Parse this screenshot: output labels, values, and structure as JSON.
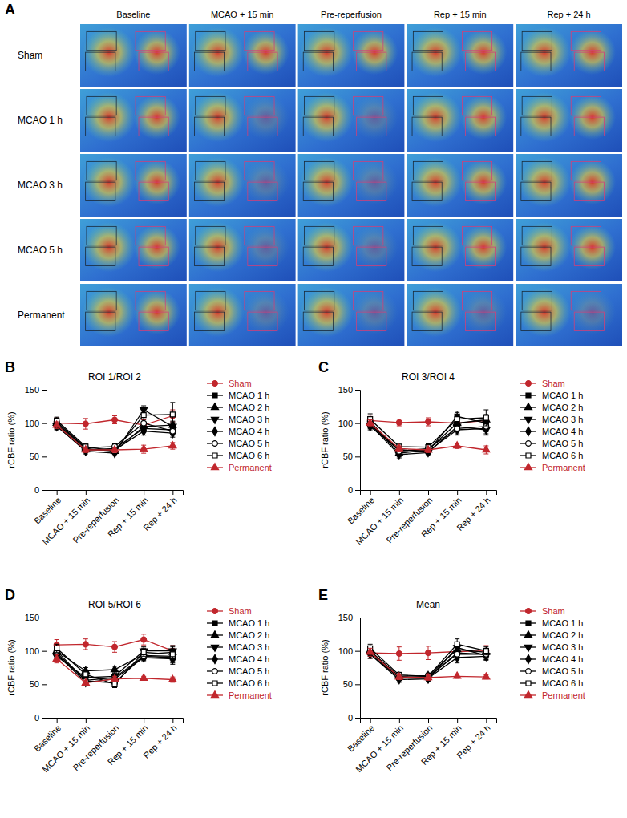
{
  "image_grid": {
    "panel": "A",
    "columns": [
      "Baseline",
      "MCAO + 15 min",
      "Pre-reperfusion",
      "Rep + 15 min",
      "Rep + 24 h"
    ],
    "rows": [
      "Sham",
      "MCAO 1 h",
      "MCAO 3 h",
      "MCAO 5 h",
      "Permanent"
    ]
  },
  "chart_data": [
    {
      "panel": "B",
      "type": "line",
      "title": "ROI 1/ROI 2",
      "y_label": "rCBF ratio (%)",
      "categories": [
        "Baseline",
        "MCAO + 15 min",
        "Pre-reperfusion",
        "Rep + 15 min",
        "Rep + 24 h"
      ],
      "ylim": [
        0,
        150
      ],
      "yticks": [
        0,
        50,
        100,
        150
      ],
      "legend": "right",
      "series": [
        {
          "name": "Sham",
          "color": "#c1272d",
          "marker": "circle",
          "values": [
            100,
            99,
            105,
            97,
            111
          ],
          "errors": [
            8,
            8,
            6,
            8,
            9
          ]
        },
        {
          "name": "MCAO 1 h",
          "color": "#000000",
          "marker": "square",
          "values": [
            98,
            60,
            62,
            92,
            90
          ],
          "errors": [
            5,
            4,
            4,
            6,
            6
          ]
        },
        {
          "name": "MCAO 2 h",
          "color": "#000000",
          "marker": "triangle-up",
          "values": [
            100,
            62,
            58,
            95,
            97
          ],
          "errors": [
            5,
            4,
            4,
            6,
            6
          ]
        },
        {
          "name": "MCAO 3 h",
          "color": "#000000",
          "marker": "triangle-down",
          "values": [
            96,
            58,
            55,
            120,
            95
          ],
          "errors": [
            5,
            4,
            4,
            6,
            6
          ]
        },
        {
          "name": "MCAO 4 h",
          "color": "#000000",
          "marker": "diamond",
          "values": [
            95,
            60,
            60,
            88,
            85
          ],
          "errors": [
            5,
            4,
            4,
            6,
            6
          ]
        },
        {
          "name": "MCAO 5 h",
          "color": "#000000",
          "marker": "circle-open",
          "values": [
            102,
            63,
            65,
            100,
            88
          ],
          "errors": [
            5,
            4,
            4,
            6,
            6
          ]
        },
        {
          "name": "MCAO 6 h",
          "color": "#000000",
          "marker": "square-open",
          "values": [
            104,
            65,
            58,
            112,
            113
          ],
          "errors": [
            5,
            4,
            4,
            6,
            18
          ]
        },
        {
          "name": "Permanent",
          "color": "#c1272d",
          "marker": "triangle-up",
          "values": [
            97,
            60,
            60,
            61,
            66
          ],
          "errors": [
            5,
            4,
            4,
            6,
            5
          ]
        }
      ]
    },
    {
      "panel": "C",
      "type": "line",
      "title": "ROI 3/ROI 4",
      "y_label": "rCBF ratio (%)",
      "categories": [
        "Baseline",
        "MCAO + 15 min",
        "Pre-reperfusion",
        "Rep + 15 min",
        "Rep + 24 h"
      ],
      "ylim": [
        0,
        150
      ],
      "yticks": [
        0,
        50,
        100,
        150
      ],
      "legend": "right",
      "series": [
        {
          "name": "Sham",
          "color": "#c1272d",
          "marker": "circle",
          "values": [
            104,
            101,
            102,
            100,
            104
          ],
          "errors": [
            6,
            5,
            6,
            5,
            6
          ]
        },
        {
          "name": "MCAO 1 h",
          "color": "#000000",
          "marker": "square",
          "values": [
            98,
            60,
            58,
            110,
            100
          ],
          "errors": [
            5,
            5,
            5,
            8,
            8
          ]
        },
        {
          "name": "MCAO 2 h",
          "color": "#000000",
          "marker": "triangle-up",
          "values": [
            100,
            55,
            60,
            100,
            105
          ],
          "errors": [
            5,
            5,
            5,
            8,
            8
          ]
        },
        {
          "name": "MCAO 3 h",
          "color": "#000000",
          "marker": "triangle-down",
          "values": [
            97,
            53,
            56,
            95,
            90
          ],
          "errors": [
            5,
            5,
            5,
            8,
            8
          ]
        },
        {
          "name": "MCAO 4 h",
          "color": "#000000",
          "marker": "diamond",
          "values": [
            95,
            60,
            58,
            90,
            92
          ],
          "errors": [
            5,
            5,
            5,
            8,
            8
          ]
        },
        {
          "name": "MCAO 5 h",
          "color": "#000000",
          "marker": "circle-open",
          "values": [
            102,
            58,
            62,
            92,
            95
          ],
          "errors": [
            5,
            5,
            5,
            8,
            8
          ]
        },
        {
          "name": "MCAO 6 h",
          "color": "#000000",
          "marker": "square-open",
          "values": [
            106,
            65,
            64,
            106,
            108
          ],
          "errors": [
            8,
            5,
            5,
            10,
            12
          ]
        },
        {
          "name": "Permanent",
          "color": "#c1272d",
          "marker": "triangle-up",
          "values": [
            100,
            62,
            60,
            66,
            60
          ],
          "errors": [
            5,
            4,
            4,
            4,
            6
          ]
        }
      ]
    },
    {
      "panel": "D",
      "type": "line",
      "title": "ROI 5/ROI 6",
      "y_label": "rCBF ratio (%)",
      "categories": [
        "Baseline",
        "MCAO + 15 min",
        "Pre-reperfusion",
        "Rep + 15 min",
        "Rep + 24 h"
      ],
      "ylim": [
        0,
        150
      ],
      "yticks": [
        0,
        50,
        100,
        150
      ],
      "legend": "right",
      "series": [
        {
          "name": "Sham",
          "color": "#c1272d",
          "marker": "circle",
          "values": [
            109,
            110,
            106,
            117,
            100
          ],
          "errors": [
            8,
            8,
            8,
            8,
            8
          ]
        },
        {
          "name": "MCAO 1 h",
          "color": "#000000",
          "marker": "square",
          "values": [
            97,
            56,
            60,
            92,
            90
          ],
          "errors": [
            6,
            5,
            5,
            6,
            8
          ]
        },
        {
          "name": "MCAO 2 h",
          "color": "#000000",
          "marker": "triangle-up",
          "values": [
            100,
            70,
            72,
            95,
            98
          ],
          "errors": [
            6,
            5,
            5,
            6,
            8
          ]
        },
        {
          "name": "MCAO 3 h",
          "color": "#000000",
          "marker": "triangle-down",
          "values": [
            92,
            60,
            62,
            100,
            100
          ],
          "errors": [
            6,
            5,
            5,
            6,
            8
          ]
        },
        {
          "name": "MCAO 4 h",
          "color": "#000000",
          "marker": "diamond",
          "values": [
            95,
            53,
            58,
            90,
            88
          ],
          "errors": [
            6,
            5,
            5,
            6,
            8
          ]
        },
        {
          "name": "MCAO 5 h",
          "color": "#000000",
          "marker": "circle-open",
          "values": [
            100,
            55,
            52,
            93,
            92
          ],
          "errors": [
            6,
            5,
            5,
            6,
            8
          ]
        },
        {
          "name": "MCAO 6 h",
          "color": "#000000",
          "marker": "square-open",
          "values": [
            104,
            65,
            50,
            98,
            95
          ],
          "errors": [
            6,
            5,
            5,
            6,
            8
          ]
        },
        {
          "name": "Permanent",
          "color": "#c1272d",
          "marker": "triangle-up",
          "values": [
            88,
            52,
            58,
            59,
            57
          ],
          "errors": [
            6,
            4,
            4,
            3,
            4
          ]
        }
      ]
    },
    {
      "panel": "E",
      "type": "line",
      "title": "Mean",
      "y_label": "rCBF ratio (%)",
      "categories": [
        "Baseline",
        "MCAO + 15 min",
        "Pre-reperfusion",
        "Rep + 15 min",
        "Rep + 24 h"
      ],
      "ylim": [
        0,
        150
      ],
      "yticks": [
        0,
        50,
        100,
        150
      ],
      "legend": "right",
      "series": [
        {
          "name": "Sham",
          "color": "#c1272d",
          "marker": "circle",
          "values": [
            97,
            96,
            97,
            99,
            100
          ],
          "errors": [
            8,
            10,
            10,
            8,
            8
          ]
        },
        {
          "name": "MCAO 1 h",
          "color": "#000000",
          "marker": "square",
          "values": [
            98,
            60,
            60,
            97,
            95
          ],
          "errors": [
            6,
            4,
            4,
            8,
            6
          ]
        },
        {
          "name": "MCAO 2 h",
          "color": "#000000",
          "marker": "triangle-up",
          "values": [
            100,
            62,
            63,
            102,
            98
          ],
          "errors": [
            6,
            4,
            4,
            8,
            6
          ]
        },
        {
          "name": "MCAO 3 h",
          "color": "#000000",
          "marker": "triangle-down",
          "values": [
            95,
            57,
            58,
            105,
            93
          ],
          "errors": [
            6,
            4,
            4,
            8,
            6
          ]
        },
        {
          "name": "MCAO 4 h",
          "color": "#000000",
          "marker": "diamond",
          "values": [
            95,
            60,
            59,
            90,
            92
          ],
          "errors": [
            6,
            4,
            4,
            8,
            6
          ]
        },
        {
          "name": "MCAO 5 h",
          "color": "#000000",
          "marker": "circle-open",
          "values": [
            100,
            60,
            62,
            95,
            95
          ],
          "errors": [
            6,
            4,
            4,
            8,
            6
          ]
        },
        {
          "name": "MCAO 6 h",
          "color": "#000000",
          "marker": "square-open",
          "values": [
            104,
            64,
            62,
            110,
            100
          ],
          "errors": [
            6,
            4,
            4,
            8,
            6
          ]
        },
        {
          "name": "Permanent",
          "color": "#c1272d",
          "marker": "triangle-up",
          "values": [
            98,
            61,
            60,
            62,
            61
          ],
          "errors": [
            6,
            4,
            4,
            3,
            3
          ]
        }
      ]
    }
  ]
}
